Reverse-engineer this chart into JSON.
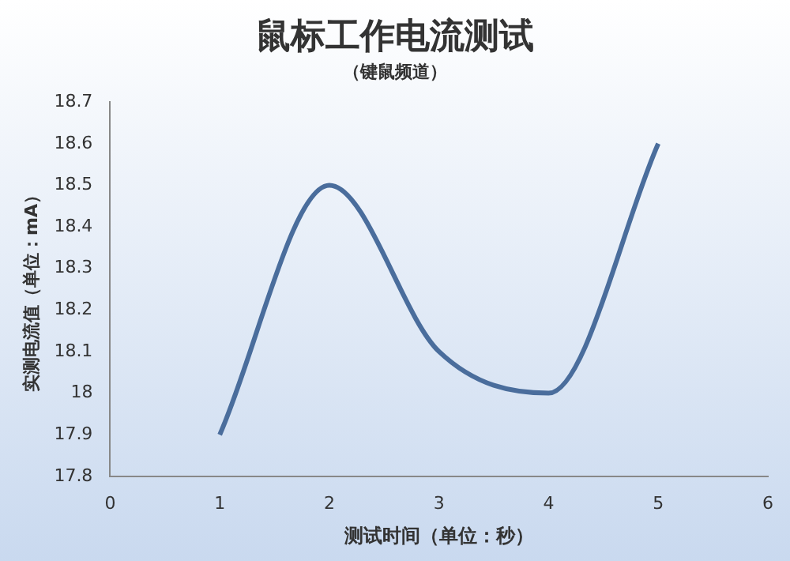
{
  "chart_data": {
    "type": "line",
    "title": "鼠标工作电流测试",
    "subtitle": "（键鼠频道）",
    "xlabel": "测试时间（单位：秒）",
    "ylabel": "实测电流值（单位：mA）",
    "x": [
      1,
      2,
      3,
      4,
      5
    ],
    "series": [
      {
        "color": "#4a6d9c",
        "values": [
          17.9,
          18.5,
          18.1,
          18.0,
          18.6
        ]
      }
    ],
    "xlim": [
      0,
      6
    ],
    "xticks": [
      0,
      1,
      2,
      3,
      4,
      5,
      6
    ],
    "ylim": [
      17.8,
      18.7
    ],
    "yticks": [
      17.8,
      17.9,
      18,
      18.1,
      18.2,
      18.3,
      18.4,
      18.5,
      18.6,
      18.7
    ],
    "grid": false,
    "legend": false,
    "marker": "none",
    "line_style": "solid"
  }
}
